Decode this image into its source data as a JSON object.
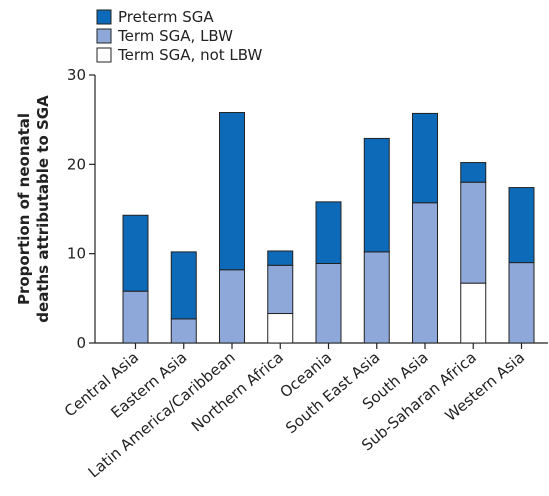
{
  "chart_data": {
    "type": "bar",
    "stacked": true,
    "title": "",
    "xlabel": "",
    "ylabel": [
      "Proportion of neonatal",
      "deaths attributable to SGA"
    ],
    "ylim": [
      0,
      30
    ],
    "yticks": [
      0,
      10,
      20,
      30
    ],
    "grid": false,
    "legend_position": "top-left",
    "categories": [
      "Central Asia",
      "Eastern Asia",
      "Latin America/Caribbean",
      "Northern Africa",
      "Oceania",
      "South East Asia",
      "South Asia",
      "Sub-Saharan Africa",
      "Western Asia"
    ],
    "series": [
      {
        "name": "Term SGA, not LBW",
        "color": "#ffffff",
        "values": [
          0,
          0,
          0,
          3.3,
          0,
          0,
          0,
          6.7,
          0
        ]
      },
      {
        "name": "Term SGA, LBW",
        "color": "#8ea9d9",
        "values": [
          5.8,
          2.7,
          8.2,
          5.4,
          8.9,
          10.2,
          15.7,
          11.3,
          9.0
        ]
      },
      {
        "name": "Preterm SGA",
        "color": "#0d6ab8",
        "values": [
          8.5,
          7.5,
          17.6,
          1.6,
          6.9,
          12.7,
          10.0,
          2.2,
          8.4
        ]
      }
    ],
    "legend": [
      "Preterm SGA",
      "Term SGA, LBW",
      "Term SGA, not LBW"
    ]
  }
}
